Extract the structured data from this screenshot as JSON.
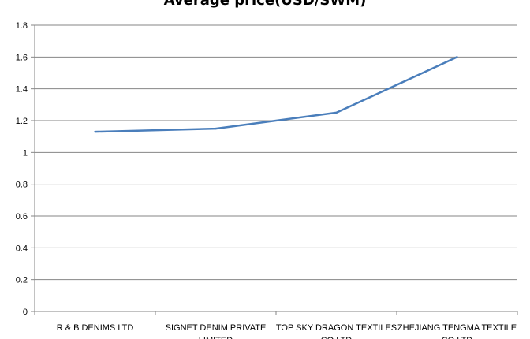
{
  "chart_data": {
    "type": "line",
    "title": "Average price(USD/SWM)",
    "categories": [
      "R & B DENIMS LTD",
      "SIGNET DENIM PRIVATE LIMITED",
      "TOP SKY DRAGON TEXTILES CO LTD",
      "ZHEJIANG TENGMA TEXTILE CO LTD"
    ],
    "category_labels": [
      [
        "R & B DENIMS  LTD"
      ],
      [
        "SIGNET  DENIM  PRIVATE",
        "LIMITED"
      ],
      [
        "TOP SKY DRAGON  TEXTILES",
        "CO LTD"
      ],
      [
        "ZHEJIANG  TENGMA    TEXTILE",
        "CO LTD"
      ]
    ],
    "values": [
      1.13,
      1.15,
      1.25,
      1.6
    ],
    "ylim": [
      0,
      1.8
    ],
    "yticks": [
      "0",
      "0.2",
      "0.4",
      "0.6",
      "0.8",
      "1",
      "1.2",
      "1.4",
      "1.6",
      "1.8"
    ],
    "grid": true,
    "legend": "none",
    "line_color": "#4a7ebb"
  }
}
